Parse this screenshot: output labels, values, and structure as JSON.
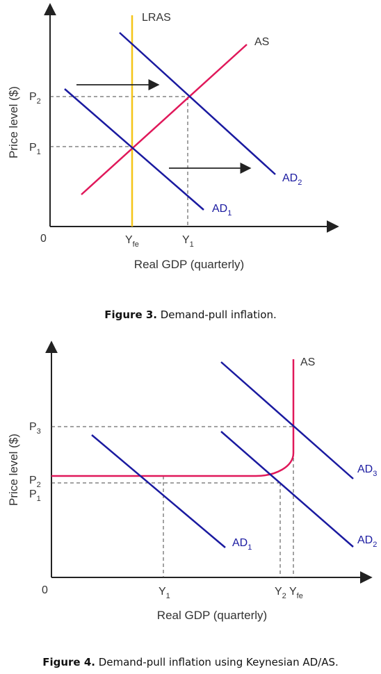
{
  "figure3": {
    "ylabel": "Price level ($)",
    "xlabel": "Real GDP (quarterly)",
    "origin": "0",
    "lras_label": "LRAS",
    "as_label": "AS",
    "ad1": {
      "base": "AD",
      "sub": "1"
    },
    "ad2": {
      "base": "AD",
      "sub": "2"
    },
    "p1": {
      "base": "P",
      "sub": "1"
    },
    "p2": {
      "base": "P",
      "sub": "2"
    },
    "yfe": {
      "base": "Y",
      "sub": "fe"
    },
    "y1": {
      "base": "Y",
      "sub": "1"
    },
    "caption_bold": "Figure 3.",
    "caption_text": " Demand-pull inflation."
  },
  "figure4": {
    "ylabel": "Price level ($)",
    "xlabel": "Real GDP (quarterly)",
    "origin": "0",
    "as_label": "AS",
    "ad1": {
      "base": "AD",
      "sub": "1"
    },
    "ad2": {
      "base": "AD",
      "sub": "2"
    },
    "ad3": {
      "base": "AD",
      "sub": "3"
    },
    "p1": {
      "base": "P",
      "sub": "1"
    },
    "p2": {
      "base": "P",
      "sub": "2"
    },
    "p3": {
      "base": "P",
      "sub": "3"
    },
    "y1": {
      "base": "Y",
      "sub": "1"
    },
    "y2": {
      "base": "Y",
      "sub": "2"
    },
    "yfe": {
      "base": "Y",
      "sub": "fe"
    },
    "caption_bold": "Figure 4.",
    "caption_text": " Demand-pull inflation using Keynesian AD/AS."
  },
  "colors": {
    "ad": "#1a1aa0",
    "as": "#e0185a",
    "lras": "#f5c518",
    "axis": "#222222",
    "guide": "#444444"
  }
}
